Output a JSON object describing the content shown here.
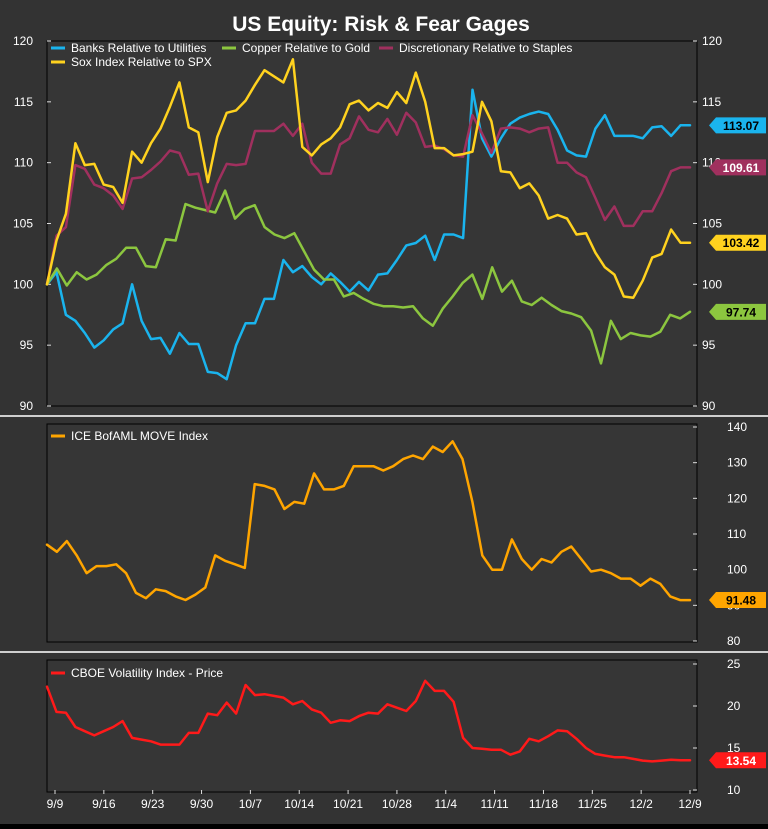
{
  "title": "US Equity: Risk & Fear Gages",
  "colors": {
    "background": "#333333",
    "plot_bg": "#363636",
    "panel_border": "#000000",
    "divider": "#cfcfcf",
    "grid": "#4a4a4a",
    "text": "#ffffff",
    "axis": "#dddddd"
  },
  "x_ticks": [
    "9/9",
    "9/16",
    "9/23",
    "9/30",
    "10/7",
    "10/14",
    "10/21",
    "10/28",
    "11/4",
    "11/11",
    "11/18",
    "11/25",
    "12/2",
    "12/9"
  ],
  "chart_data": [
    {
      "type": "line",
      "panel": "top",
      "ylim": [
        90,
        120
      ],
      "yticks": [
        90,
        95,
        100,
        105,
        110,
        115,
        120
      ],
      "axes": "left and right",
      "legend": "top-left, two rows",
      "series": [
        {
          "name": "Banks Relative to Utilities",
          "color": "#1ab4ee",
          "last_label": "113.07",
          "values": [
            100,
            101,
            97.5,
            97,
            96,
            94.8,
            95.4,
            96.3,
            96.8,
            100,
            97,
            95.5,
            95.6,
            94.3,
            96,
            95.1,
            95.1,
            92.8,
            92.7,
            92.2,
            95,
            96.8,
            96.8,
            98.8,
            98.8,
            102,
            101,
            101.5,
            100.6,
            100,
            100.9,
            100.2,
            99.4,
            100.2,
            99.5,
            100.8,
            100.9,
            102,
            103.2,
            103.4,
            104,
            102,
            104.1,
            104.1,
            103.8,
            116,
            112,
            110.5,
            112,
            113.2,
            113.7,
            114,
            114.2,
            114,
            112.7,
            111,
            110.6,
            110.5,
            112.8,
            113.9,
            112.2,
            112.2,
            112.2,
            112,
            112.9,
            113,
            112.2,
            113.07,
            113.07
          ]
        },
        {
          "name": "Copper Relative to Gold",
          "color": "#8cc63f",
          "last_label": "97.74",
          "values": [
            100,
            101.3,
            99.9,
            101,
            100.4,
            100.8,
            101.6,
            102.1,
            103,
            103,
            101.5,
            101.4,
            103.7,
            103.6,
            106.6,
            106.3,
            106.1,
            105.9,
            107.7,
            105.4,
            106.2,
            106.5,
            104.7,
            104.1,
            103.8,
            104.2,
            102.7,
            101.2,
            100.4,
            100.4,
            99,
            99.3,
            98.8,
            98.4,
            98.2,
            98.2,
            98.1,
            98.2,
            97.2,
            96.6,
            98,
            99,
            100.1,
            100.8,
            98.8,
            101.4,
            99.4,
            100.3,
            98.6,
            98.3,
            98.9,
            98.3,
            97.8,
            97.6,
            97.3,
            96.2,
            93.5,
            97,
            95.5,
            96,
            95.8,
            95.7,
            96.1,
            97.5,
            97.2,
            97.74
          ]
        },
        {
          "name": "Discretionary Relative to Staples",
          "color": "#a0305e",
          "last_label": "109.61",
          "values": [
            100,
            104,
            104.7,
            109.8,
            109.5,
            108.2,
            107.9,
            107.3,
            106.2,
            108.7,
            108.8,
            109.4,
            110.1,
            111,
            110.8,
            109,
            109.1,
            106,
            108.3,
            109.9,
            109.8,
            109.9,
            112.6,
            112.6,
            112.6,
            113.2,
            112.2,
            113.2,
            110,
            109.1,
            109.1,
            111.5,
            112,
            113.8,
            112.7,
            112.5,
            113.6,
            112.3,
            114.1,
            113.3,
            111.3,
            111.4,
            111.1,
            110.6,
            110.5,
            113.9,
            112.4,
            110.8,
            112.8,
            112.9,
            112.8,
            112.5,
            112.8,
            112.9,
            110,
            110,
            109.2,
            108.8,
            107.1,
            105.3,
            106.4,
            104.8,
            104.8,
            106,
            106,
            107.5,
            109.3,
            109.61,
            109.61
          ]
        },
        {
          "name": "Sox Index Relative to SPX",
          "color": "#ffd21f",
          "last_label": "103.42",
          "values": [
            100,
            103.6,
            105.8,
            111.6,
            109.8,
            109.9,
            108.2,
            108,
            106.7,
            110.9,
            110,
            111.6,
            112.8,
            114.6,
            116.6,
            112.9,
            112.5,
            108.4,
            112.1,
            114.1,
            114.3,
            115.1,
            116.4,
            117.6,
            117.1,
            116.6,
            118.5,
            111.3,
            110.6,
            111.5,
            112,
            112.9,
            114.8,
            115.1,
            114.3,
            114.9,
            114.5,
            115.8,
            114.9,
            117.4,
            115,
            111.2,
            111.2,
            110.6,
            110.7,
            110.9,
            115,
            113.4,
            109.3,
            109.2,
            107.9,
            108.3,
            107.3,
            105.4,
            105.7,
            105.4,
            104.1,
            104.2,
            102.6,
            101.4,
            100.8,
            99,
            98.9,
            100.3,
            102.2,
            102.5,
            104.5,
            103.42,
            103.42
          ]
        }
      ]
    },
    {
      "type": "line",
      "panel": "middle",
      "ylim": [
        80,
        140
      ],
      "yticks": [
        80,
        90,
        100,
        110,
        120,
        130,
        140
      ],
      "axes": "right",
      "legend": "top-left",
      "series": [
        {
          "name": "ICE BofAML MOVE Index",
          "color": "#ffa500",
          "last_label": "91.48",
          "values": [
            107,
            105,
            108,
            104,
            99,
            101,
            101,
            101.5,
            99,
            93.5,
            92,
            94.5,
            94,
            92.5,
            91.5,
            93,
            95,
            104,
            102.5,
            101.5,
            100.5,
            124,
            123.5,
            122.5,
            117,
            119,
            118.5,
            127,
            122.5,
            122.5,
            123.5,
            129,
            129,
            129,
            127.8,
            129,
            131,
            132,
            131,
            134.5,
            133,
            136,
            131,
            119,
            104,
            100,
            100,
            108.5,
            103,
            100,
            103,
            102,
            105,
            106.5,
            103,
            99.5,
            100,
            99,
            97.5,
            97.5,
            95.5,
            97.5,
            96,
            92.5,
            91.48,
            91.48
          ]
        }
      ]
    },
    {
      "type": "line",
      "panel": "bottom",
      "ylim": [
        10,
        25
      ],
      "yticks": [
        10,
        15,
        20,
        25
      ],
      "axes": "right",
      "legend": "top-left",
      "series": [
        {
          "name": "CBOE Volatility Index - Price",
          "color": "#ff1a1a",
          "last_label": "13.54",
          "values": [
            22.3,
            19.3,
            19.2,
            17.5,
            17,
            16.5,
            17,
            17.5,
            18.2,
            16.2,
            16,
            15.8,
            15.4,
            15.4,
            15.4,
            16.8,
            16.8,
            19.1,
            18.9,
            20.4,
            19.1,
            22.5,
            21.3,
            21.4,
            21.2,
            21,
            20.2,
            20.6,
            19.6,
            19.2,
            18,
            18.3,
            18.2,
            18.8,
            19.2,
            19.1,
            20.2,
            19.8,
            19.4,
            20.6,
            23,
            21.8,
            21.8,
            20.5,
            16.2,
            15,
            14.9,
            14.8,
            14.8,
            14.2,
            14.6,
            16.1,
            15.8,
            16.4,
            17.1,
            17,
            16.1,
            15,
            14.3,
            14.1,
            13.9,
            13.9,
            13.7,
            13.5,
            13.4,
            13.5,
            13.6,
            13.54,
            13.54
          ]
        }
      ]
    }
  ]
}
